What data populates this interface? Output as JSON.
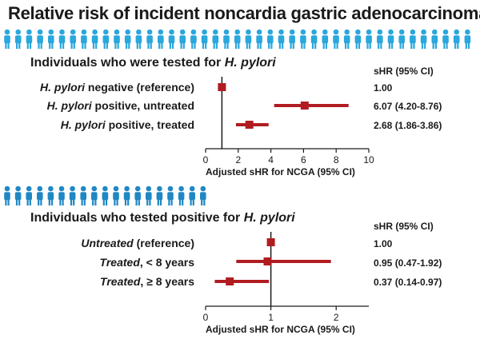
{
  "title": "Relative risk of incident noncardia gastric adenocarcinoma**",
  "colors": {
    "marker": "#b01c20",
    "icons_top": "#2aa7dd",
    "icons_bottom": "#1f88c4",
    "axis": "#1a1a1a"
  },
  "chart_data": [
    {
      "type": "forest",
      "section_title_prefix": "Individuals who were tested for ",
      "section_title_em": "H. pylori",
      "column_header": "sHR (95% CI)",
      "xlabel": "Adjusted sHR for NCGA (95% CI)",
      "xlim": [
        0,
        10
      ],
      "xticks": [
        0,
        2,
        4,
        6,
        8,
        10
      ],
      "reference_line": 1,
      "rows": [
        {
          "label_em": "H. pylori",
          "label_rest": " negative (reference)",
          "estimate": 1.0,
          "lower": 1.0,
          "upper": 1.0,
          "ci_text": "1.00"
        },
        {
          "label_em": "H. pylori",
          "label_rest": " positive, untreated",
          "estimate": 6.07,
          "lower": 4.2,
          "upper": 8.76,
          "ci_text": "6.07 (4.20-8.76)"
        },
        {
          "label_em": "H. pylori",
          "label_rest": " positive, treated",
          "estimate": 2.68,
          "lower": 1.86,
          "upper": 3.86,
          "ci_text": "2.68 (1.86-3.86)"
        }
      ]
    },
    {
      "type": "forest",
      "section_title_prefix": "Individuals who tested positive for ",
      "section_title_em": "H. pylori",
      "column_header": "sHR (95% CI)",
      "xlabel": "Adjusted sHR for NCGA (95% CI)",
      "xlim": [
        0,
        2.5
      ],
      "xticks": [
        0,
        1,
        2
      ],
      "reference_line": 1,
      "rows": [
        {
          "label_em": "Untreated",
          "label_rest": " (reference)",
          "estimate": 1.0,
          "lower": 1.0,
          "upper": 1.0,
          "ci_text": "1.00"
        },
        {
          "label_em": "Treated",
          "label_rest": ", < 8 years",
          "estimate": 0.95,
          "lower": 0.47,
          "upper": 1.92,
          "ci_text": "0.95 (0.47-1.92)"
        },
        {
          "label_em": "Treated",
          "label_rest": ", ≥ 8 years",
          "estimate": 0.37,
          "lower": 0.14,
          "upper": 0.97,
          "ci_text": "0.37 (0.14-0.97)"
        }
      ]
    }
  ]
}
